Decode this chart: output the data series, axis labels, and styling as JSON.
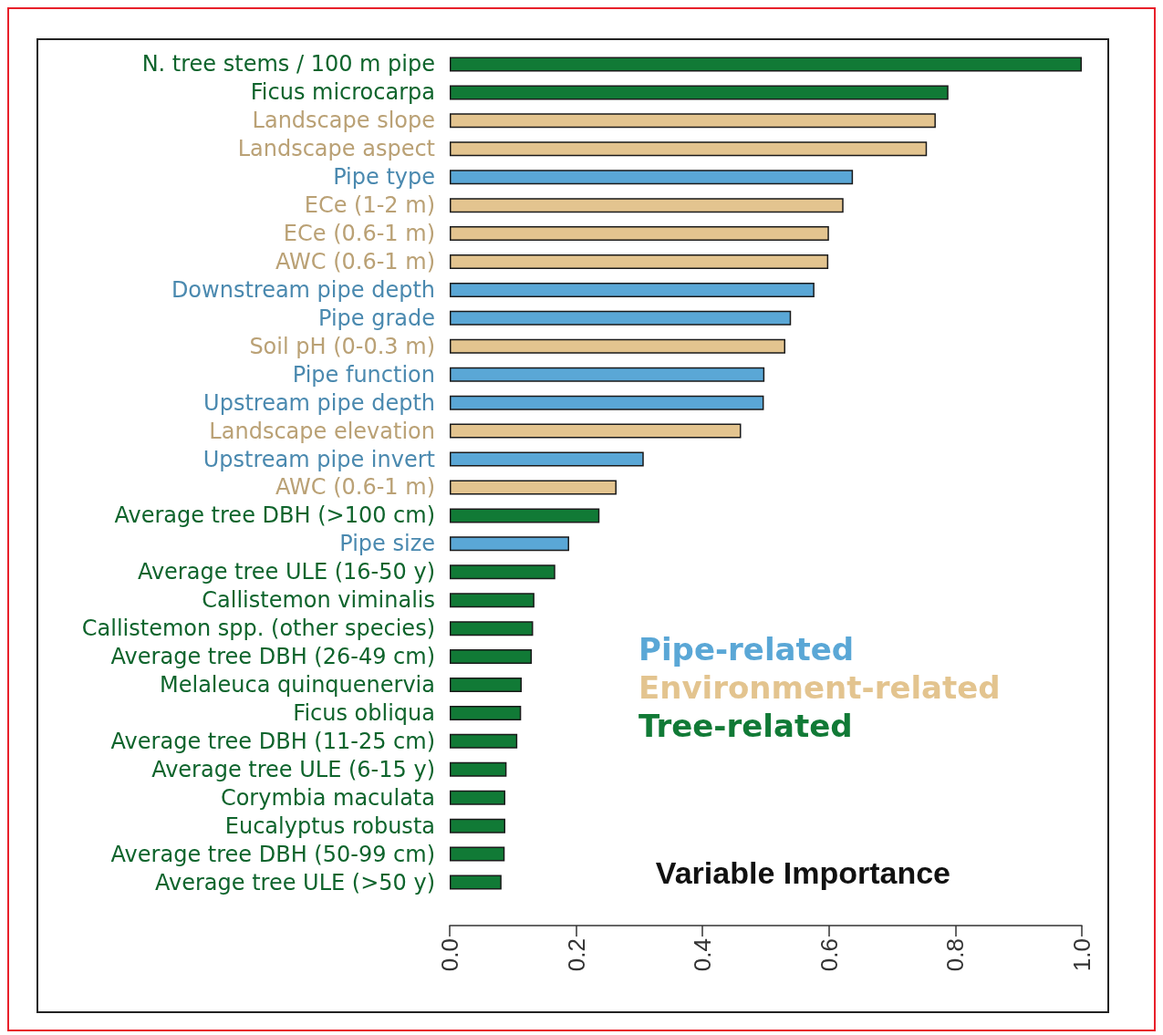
{
  "chart_data": {
    "type": "bar",
    "orientation": "horizontal",
    "xlabel": "Variable Importance",
    "categories": [
      "N. tree stems / 100 m pipe",
      "Ficus microcarpa",
      "Landscape slope",
      "Landscape aspect",
      "Pipe type",
      "ECe (1-2 m)",
      "ECe (0.6-1 m)",
      "AWC (0.6-1 m)",
      "Downstream pipe depth",
      "Pipe grade",
      "Soil pH (0-0.3 m)",
      "Pipe function",
      "Upstream pipe depth",
      "Landscape elevation",
      "Upstream pipe invert",
      "AWC (0.6-1 m)",
      "Average tree DBH (>100 cm)",
      "Pipe size",
      "Average tree ULE (16-50 y)",
      "Callistemon viminalis",
      "Callistemon spp. (other species)",
      "Average tree DBH (26-49 cm)",
      "Melaleuca quinquenervia",
      "Ficus obliqua",
      "Average tree DBH (11-25 cm)",
      "Average tree ULE (6-15 y)",
      "Corymbia maculata",
      "Eucalyptus robusta",
      "Average tree DBH (50-99 cm)",
      "Average tree ULE (>50 y)"
    ],
    "series": [
      {
        "name": "Pipe-related",
        "color": "#5aa7d6",
        "values": [
          null,
          null,
          null,
          null,
          0.638,
          null,
          null,
          null,
          0.577,
          0.54,
          null,
          0.498,
          0.497,
          null,
          0.307,
          null,
          null,
          0.189,
          null,
          null,
          null,
          null,
          null,
          null,
          null,
          null,
          null,
          null,
          null,
          null
        ]
      },
      {
        "name": "Environment-related",
        "color": "#e3c48f",
        "values": [
          null,
          null,
          0.769,
          0.755,
          null,
          0.623,
          0.6,
          0.599,
          null,
          null,
          0.531,
          null,
          null,
          0.461,
          null,
          0.264,
          null,
          null,
          null,
          null,
          null,
          null,
          null,
          null,
          null,
          null,
          null,
          null,
          null,
          null
        ]
      },
      {
        "name": "Tree-related",
        "color": "#117a36",
        "values": [
          1.0,
          0.789,
          null,
          null,
          null,
          null,
          null,
          null,
          null,
          null,
          null,
          null,
          null,
          null,
          null,
          null,
          0.237,
          null,
          0.167,
          0.134,
          0.132,
          0.13,
          0.114,
          0.113,
          0.107,
          0.09,
          0.088,
          0.088,
          0.087,
          0.082
        ]
      }
    ],
    "xlim": [
      0,
      1
    ],
    "xticks": [
      {
        "value": 0,
        "label": "0.0"
      },
      0.2,
      0.4,
      0.6,
      0.8,
      {
        "value": 1,
        "label": "1.0"
      }
    ],
    "legend": "right"
  }
}
